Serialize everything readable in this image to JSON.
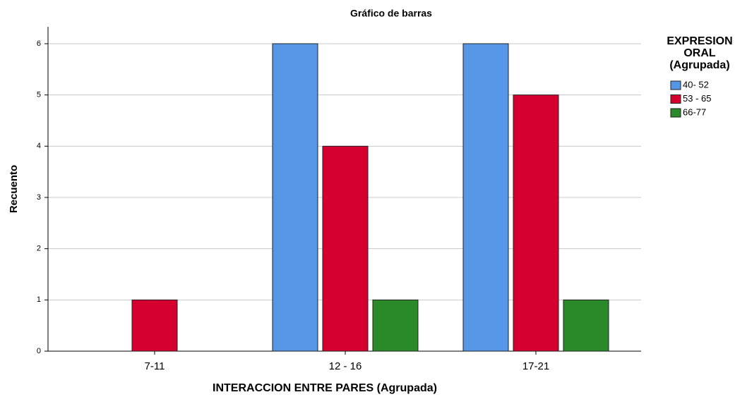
{
  "chart_data": {
    "type": "bar",
    "title": "Gráfico de barras",
    "x_label": "INTERACCION ENTRE PARES (Agrupada)",
    "y_label": "Recuento",
    "legend_title": "EXPRESION ORAL (Agrupada)",
    "categories": [
      "7-11",
      "12 - 16",
      "17-21"
    ],
    "series": [
      {
        "name": "40- 52",
        "color": "#5597e6",
        "values": [
          0,
          6,
          6
        ]
      },
      {
        "name": "53 - 65",
        "color": "#d6002f",
        "values": [
          1,
          4,
          5
        ]
      },
      {
        "name": "66-77",
        "color": "#2a8a2a",
        "values": [
          0,
          1,
          1
        ]
      }
    ],
    "ylim": [
      0,
      6.33
    ],
    "yticks": [
      0,
      1,
      2,
      3,
      4,
      5,
      6
    ],
    "grid": true,
    "legend": "right"
  }
}
